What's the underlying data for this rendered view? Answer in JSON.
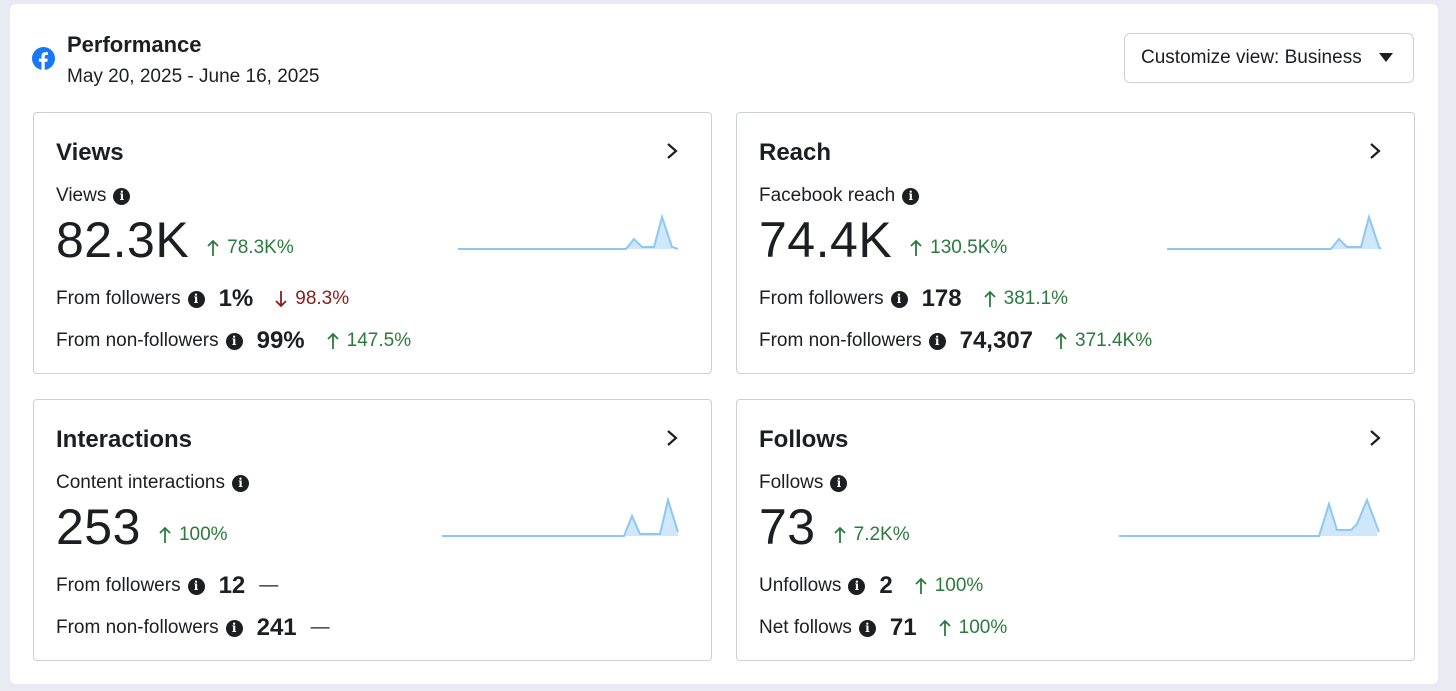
{
  "header": {
    "logo_icon": "facebook-logo-icon",
    "title": "Performance",
    "date_range": "May 20, 2025 - June 16, 2025",
    "customize_label": "Customize view: Business"
  },
  "colors": {
    "positive": "#2b7a3d",
    "negative": "#8a1c1c",
    "sparkline": "#8ec8f2"
  },
  "cards": {
    "views": {
      "title": "Views",
      "metric_label": "Views",
      "value": "82.3K",
      "change": "78.3K%",
      "rows": [
        {
          "label": "From followers",
          "value": "1%",
          "change": "98.3%",
          "direction": "down"
        },
        {
          "label": "From non-followers",
          "value": "99%",
          "change": "147.5%",
          "direction": "up"
        }
      ]
    },
    "reach": {
      "title": "Reach",
      "metric_label": "Facebook reach",
      "value": "74.4K",
      "change": "130.5K%",
      "rows": [
        {
          "label": "From followers",
          "value": "178",
          "change": "381.1%",
          "direction": "up"
        },
        {
          "label": "From non-followers",
          "value": "74,307",
          "change": "371.4K%",
          "direction": "up"
        }
      ]
    },
    "interactions": {
      "title": "Interactions",
      "metric_label": "Content interactions",
      "value": "253",
      "change": "100%",
      "rows": [
        {
          "label": "From followers",
          "value": "12",
          "change": "—",
          "direction": "none"
        },
        {
          "label": "From non-followers",
          "value": "241",
          "change": "—",
          "direction": "none"
        }
      ]
    },
    "follows": {
      "title": "Follows",
      "metric_label": "Follows",
      "value": "73",
      "change": "7.2K%",
      "rows": [
        {
          "label": "Unfollows",
          "value": "2",
          "change": "100%",
          "direction": "up"
        },
        {
          "label": "Net follows",
          "value": "71",
          "change": "100%",
          "direction": "up"
        }
      ]
    }
  }
}
